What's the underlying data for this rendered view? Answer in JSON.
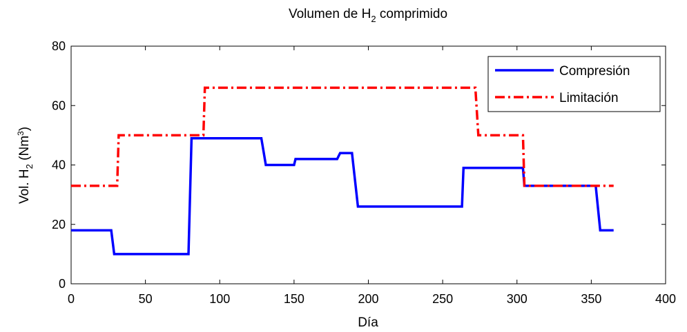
{
  "chart_data": {
    "type": "line",
    "title": {
      "pre": "Volumen de H",
      "sub": "2",
      "post": " comprimido"
    },
    "xlabel": "Día",
    "ylabel": {
      "pre": "Vol. H",
      "sub": "2",
      "mid": " (Nm",
      "sup": "3",
      "post": ")"
    },
    "xlim": [
      0,
      400
    ],
    "ylim": [
      0,
      80
    ],
    "xticks": [
      0,
      50,
      100,
      150,
      200,
      250,
      300,
      350,
      400
    ],
    "yticks": [
      0,
      20,
      40,
      60,
      80
    ],
    "grid": false,
    "legend_position": "top-right",
    "series": [
      {
        "name": "Compresión",
        "color": "#0000ff",
        "style": "solid",
        "points": [
          [
            0,
            18
          ],
          [
            27,
            18
          ],
          [
            29,
            10
          ],
          [
            79,
            10
          ],
          [
            81,
            49
          ],
          [
            128,
            49
          ],
          [
            131,
            40
          ],
          [
            150,
            40
          ],
          [
            151,
            42
          ],
          [
            179,
            42
          ],
          [
            181,
            44
          ],
          [
            189,
            44
          ],
          [
            193,
            26
          ],
          [
            263,
            26
          ],
          [
            264,
            39
          ],
          [
            304,
            39
          ],
          [
            305,
            33
          ],
          [
            353,
            33
          ],
          [
            356,
            18
          ],
          [
            365,
            18
          ]
        ]
      },
      {
        "name": "Limitación",
        "color": "#ff0000",
        "style": "dashdot",
        "points": [
          [
            0,
            33
          ],
          [
            31,
            33
          ],
          [
            32,
            50
          ],
          [
            89,
            50
          ],
          [
            90,
            66
          ],
          [
            272,
            66
          ],
          [
            274,
            50
          ],
          [
            304,
            50
          ],
          [
            305,
            33
          ],
          [
            365,
            33
          ]
        ]
      }
    ]
  }
}
